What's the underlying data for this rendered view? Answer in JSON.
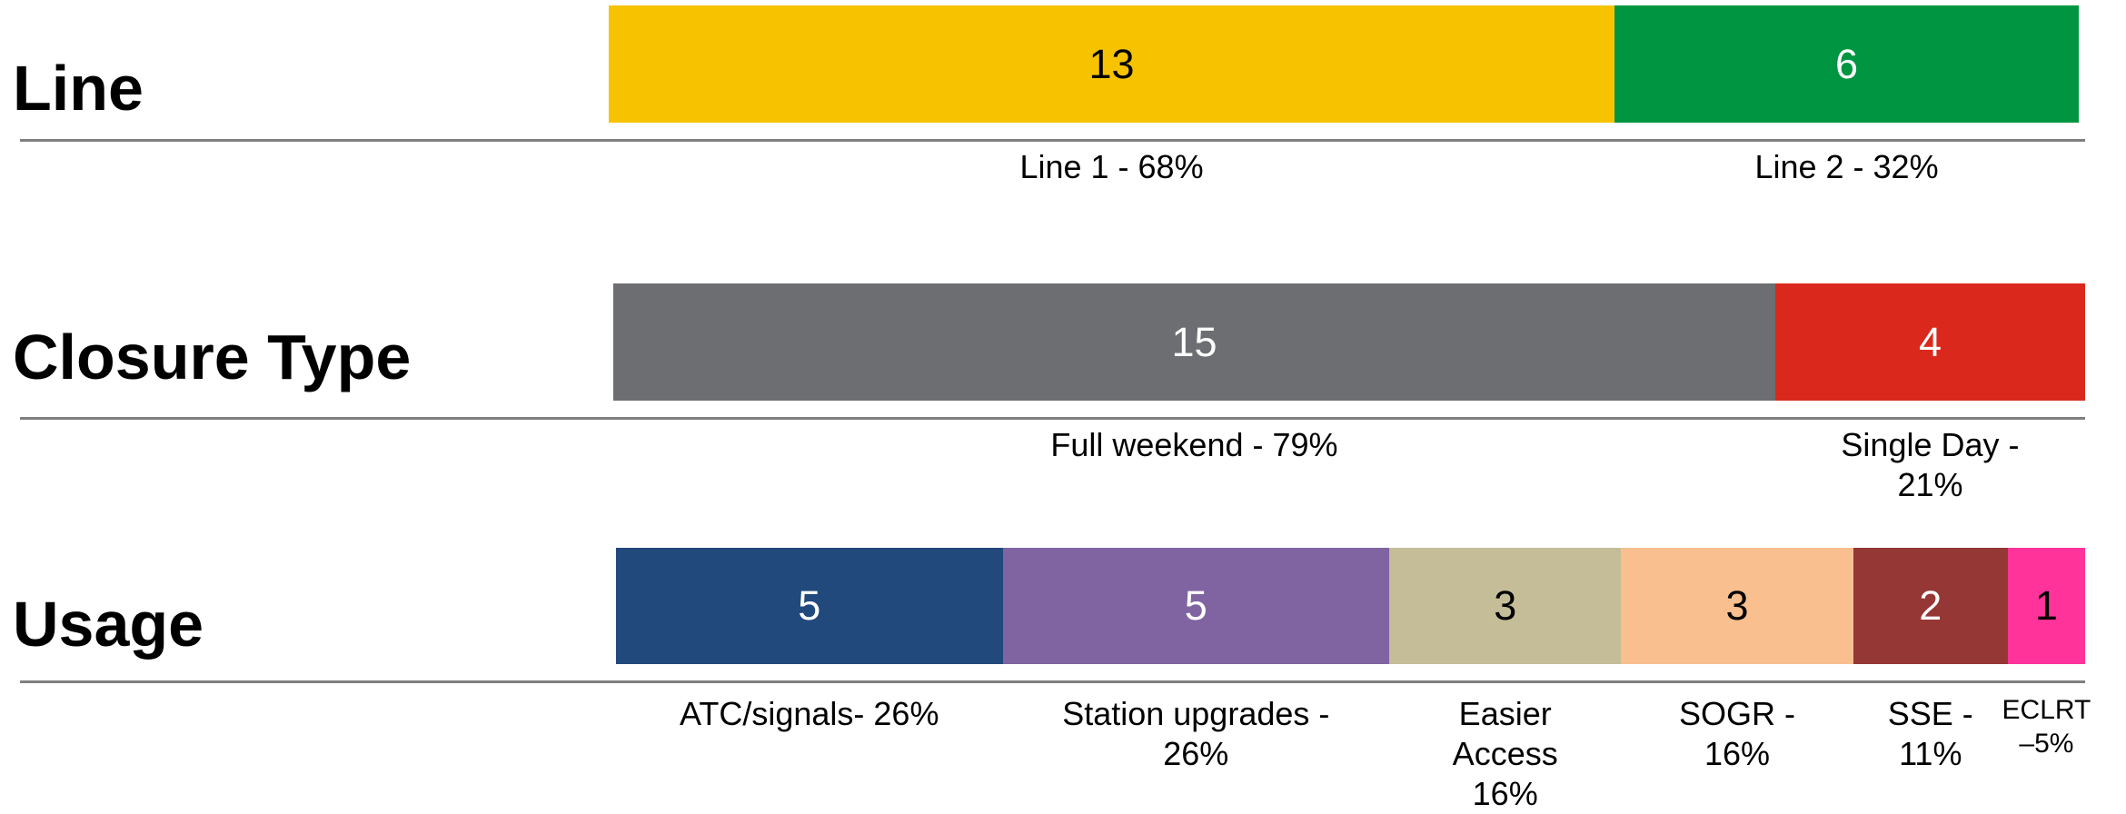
{
  "chart_data": [
    {
      "type": "bar",
      "title": "Line",
      "series": [
        {
          "name": "Line 1 - 68%",
          "color": "#f7c300",
          "text_color": "#000000",
          "values": [
            13
          ]
        },
        {
          "name": "Line 2 - 32%",
          "color": "#009540",
          "text_color": "#ffffff",
          "values": [
            6
          ]
        }
      ]
    },
    {
      "type": "bar",
      "title": "Closure Type",
      "series": [
        {
          "name": "Full weekend - 79%",
          "color": "#6d6e71",
          "text_color": "#ffffff",
          "values": [
            15
          ]
        },
        {
          "name": "Single Day - 21%",
          "color": "#da291c",
          "text_color": "#ffffff",
          "values": [
            4
          ]
        }
      ]
    },
    {
      "type": "bar",
      "title": "Usage",
      "series": [
        {
          "name": "ATC/signals- 26%",
          "color": "#21497c",
          "text_color": "#ffffff",
          "values": [
            5
          ]
        },
        {
          "name": "Station upgrades -\n26%",
          "color": "#8064a2",
          "text_color": "#ffffff",
          "values": [
            5
          ]
        },
        {
          "name": "Easier\nAccess\n16%",
          "color": "#c4bd97",
          "text_color": "#000000",
          "values": [
            3
          ]
        },
        {
          "name": "SOGR -\n16%",
          "color": "#f9bf8f",
          "text_color": "#000000",
          "values": [
            3
          ]
        },
        {
          "name": "SSE -\n11%",
          "color": "#953735",
          "text_color": "#ffffff",
          "values": [
            2
          ]
        },
        {
          "name": "ECLRT\n–5%",
          "color": "#ff3399",
          "text_color": "#000000",
          "values": [
            1
          ]
        }
      ]
    }
  ]
}
